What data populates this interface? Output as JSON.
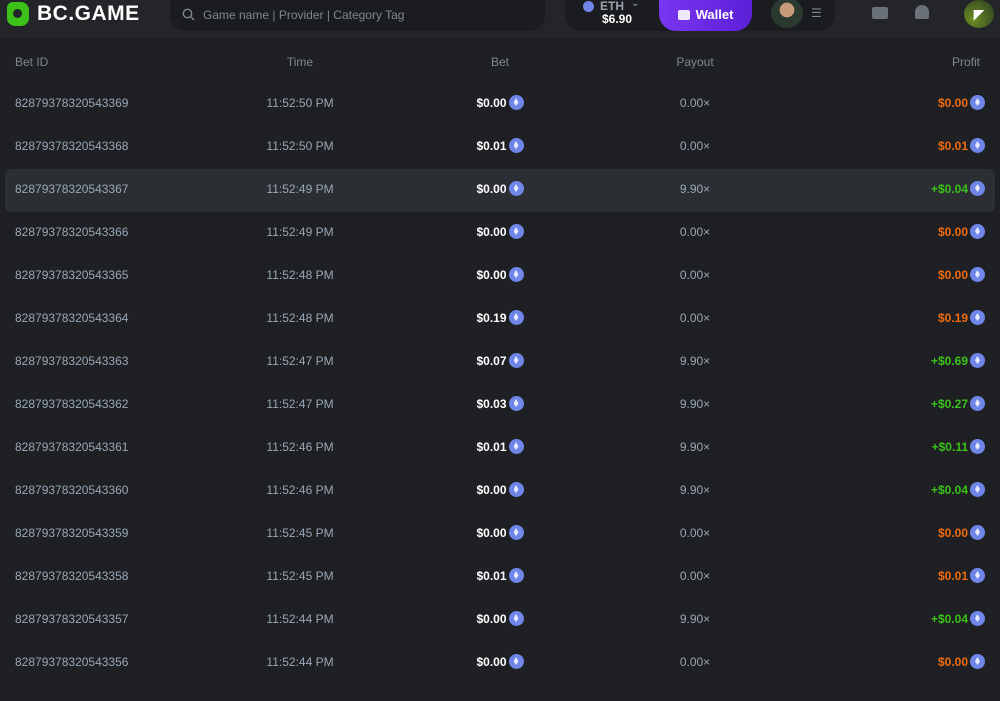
{
  "header": {
    "brand": "BC.GAME",
    "search_placeholder": "Game name | Provider | Category Tag",
    "currency": "ETH",
    "balance": "$6.90",
    "wallet_label": "Wallet"
  },
  "colors": {
    "accent": "#3bc117",
    "wallet": "#6a2ae6",
    "loss": "#f06a0f",
    "win": "#3bc117",
    "eth": "#6f86e8"
  },
  "table": {
    "columns": [
      "Bet ID",
      "Time",
      "Bet",
      "Payout",
      "Profit"
    ],
    "rows": [
      {
        "id": "82879378320543369",
        "time": "11:52:50 PM",
        "bet": "$0.00",
        "payout": "0.00×",
        "profit": "$0.00",
        "result": "loss"
      },
      {
        "id": "82879378320543368",
        "time": "11:52:50 PM",
        "bet": "$0.01",
        "payout": "0.00×",
        "profit": "$0.01",
        "result": "loss"
      },
      {
        "id": "82879378320543367",
        "time": "11:52:49 PM",
        "bet": "$0.00",
        "payout": "9.90×",
        "profit": "+$0.04",
        "result": "win",
        "highlighted": true
      },
      {
        "id": "82879378320543366",
        "time": "11:52:49 PM",
        "bet": "$0.00",
        "payout": "0.00×",
        "profit": "$0.00",
        "result": "loss"
      },
      {
        "id": "82879378320543365",
        "time": "11:52:48 PM",
        "bet": "$0.00",
        "payout": "0.00×",
        "profit": "$0.00",
        "result": "loss"
      },
      {
        "id": "82879378320543364",
        "time": "11:52:48 PM",
        "bet": "$0.19",
        "payout": "0.00×",
        "profit": "$0.19",
        "result": "loss"
      },
      {
        "id": "82879378320543363",
        "time": "11:52:47 PM",
        "bet": "$0.07",
        "payout": "9.90×",
        "profit": "+$0.69",
        "result": "win"
      },
      {
        "id": "82879378320543362",
        "time": "11:52:47 PM",
        "bet": "$0.03",
        "payout": "9.90×",
        "profit": "+$0.27",
        "result": "win"
      },
      {
        "id": "82879378320543361",
        "time": "11:52:46 PM",
        "bet": "$0.01",
        "payout": "9.90×",
        "profit": "+$0.11",
        "result": "win"
      },
      {
        "id": "82879378320543360",
        "time": "11:52:46 PM",
        "bet": "$0.00",
        "payout": "9.90×",
        "profit": "+$0.04",
        "result": "win"
      },
      {
        "id": "82879378320543359",
        "time": "11:52:45 PM",
        "bet": "$0.00",
        "payout": "0.00×",
        "profit": "$0.00",
        "result": "loss"
      },
      {
        "id": "82879378320543358",
        "time": "11:52:45 PM",
        "bet": "$0.01",
        "payout": "0.00×",
        "profit": "$0.01",
        "result": "loss"
      },
      {
        "id": "82879378320543357",
        "time": "11:52:44 PM",
        "bet": "$0.00",
        "payout": "9.90×",
        "profit": "+$0.04",
        "result": "win"
      },
      {
        "id": "82879378320543356",
        "time": "11:52:44 PM",
        "bet": "$0.00",
        "payout": "0.00×",
        "profit": "$0.00",
        "result": "loss"
      }
    ]
  }
}
